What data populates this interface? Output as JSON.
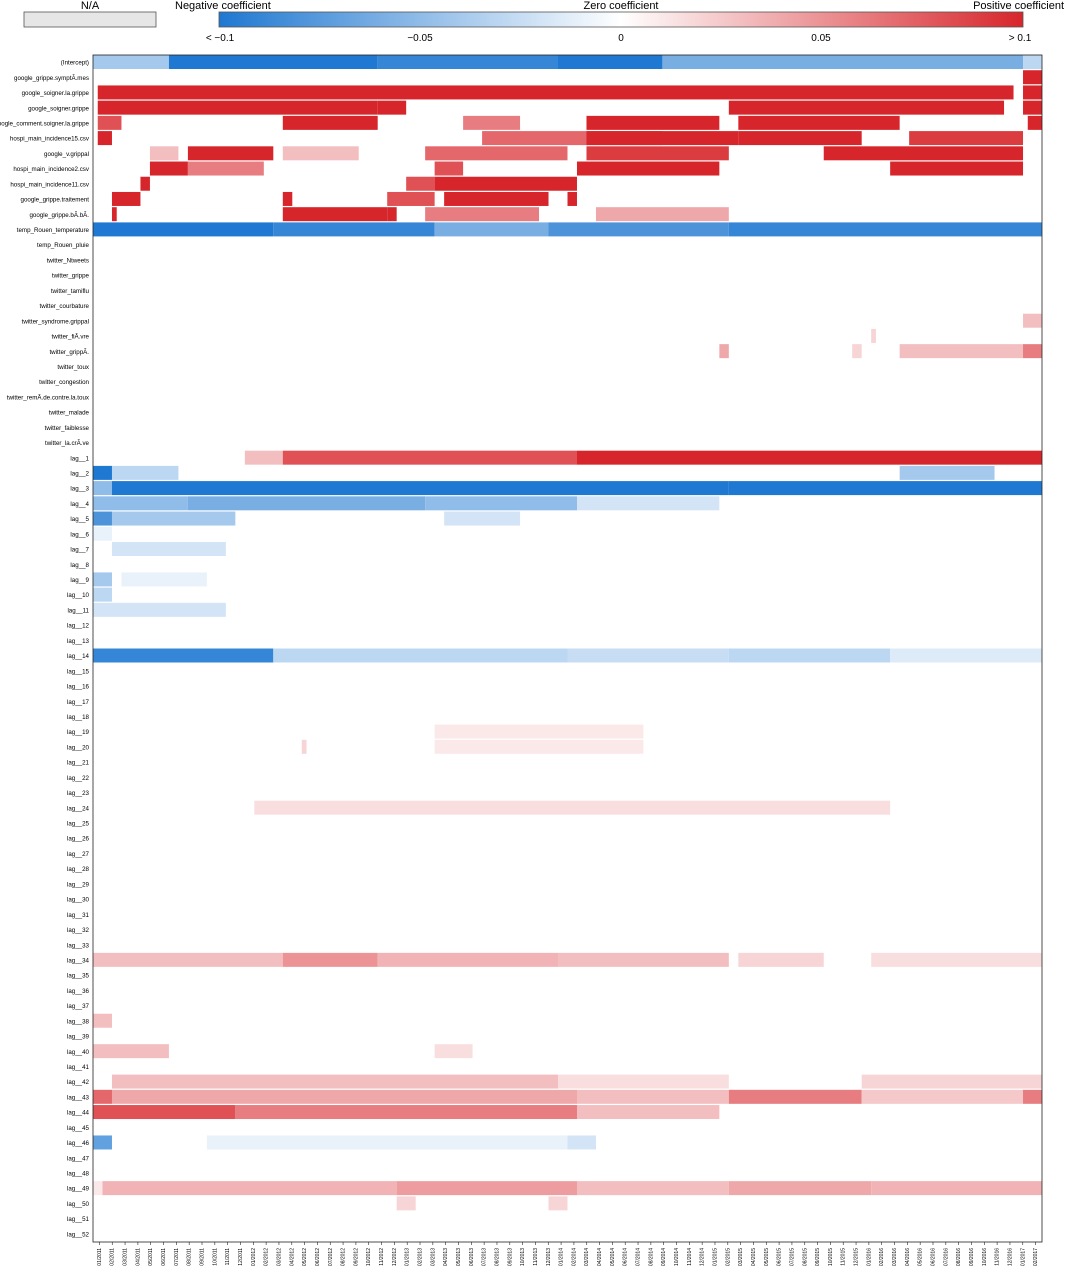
{
  "chart_data": {
    "type": "heatmap",
    "legend": {
      "na_label": "N/A",
      "negative_label": "Negative coefficient",
      "zero_label": "Zero coefficient",
      "positive_label": "Positive coefficient",
      "ticks": [
        "< −0.1",
        "−0.05",
        "0",
        "0.05",
        "> 0.1"
      ],
      "range": [
        -0.1,
        0.1
      ],
      "colors": {
        "negative": "#1f78d1",
        "zero": "#ffffff",
        "positive": "#d7262b",
        "na": "#e6e6e6"
      }
    },
    "x_labels": [
      "01/2011",
      "02/2011",
      "03/2011",
      "04/2011",
      "05/2011",
      "06/2011",
      "07/2011",
      "08/2011",
      "09/2011",
      "10/2011",
      "11/2011",
      "12/2011",
      "01/2012",
      "02/2012",
      "03/2012",
      "04/2012",
      "05/2012",
      "06/2012",
      "07/2012",
      "08/2012",
      "09/2012",
      "10/2012",
      "11/2012",
      "12/2012",
      "01/2013",
      "02/2013",
      "03/2013",
      "04/2013",
      "05/2013",
      "06/2013",
      "07/2013",
      "08/2013",
      "09/2013",
      "10/2013",
      "11/2013",
      "12/2013",
      "01/2014",
      "02/2014",
      "03/2014",
      "04/2014",
      "05/2014",
      "06/2014",
      "07/2014",
      "08/2014",
      "09/2014",
      "10/2014",
      "11/2014",
      "12/2014",
      "01/2015",
      "02/2015",
      "03/2015",
      "04/2015",
      "05/2015",
      "06/2015",
      "07/2015",
      "08/2015",
      "09/2015",
      "10/2015",
      "11/2015",
      "12/2015",
      "01/2016",
      "02/2016",
      "03/2016",
      "04/2016",
      "05/2016",
      "06/2016",
      "07/2016",
      "08/2016",
      "09/2016",
      "10/2016",
      "11/2016",
      "12/2016",
      "01/2017",
      "02/2017"
    ],
    "rows": [
      {
        "name": "(Intercept)",
        "segments": [
          [
            0,
            0.08,
            -0.04
          ],
          [
            0.08,
            0.3,
            -0.1
          ],
          [
            0.3,
            0.49,
            -0.09
          ],
          [
            0.49,
            0.6,
            -0.1
          ],
          [
            0.6,
            0.98,
            -0.06
          ],
          [
            0.98,
            1,
            -0.03
          ]
        ]
      },
      {
        "name": "google_grippe.symptÃ.mes",
        "segments": [
          [
            0.98,
            1,
            0.1
          ]
        ]
      },
      {
        "name": "google_soigner.la.grippe",
        "segments": [
          [
            0.005,
            0.97,
            0.1
          ],
          [
            0.98,
            1,
            0.1
          ]
        ]
      },
      {
        "name": "google_soigner.grippe",
        "segments": [
          [
            0.005,
            0.3,
            0.1
          ],
          [
            0.3,
            0.33,
            0.1
          ],
          [
            0.67,
            0.96,
            0.1
          ],
          [
            0.98,
            1,
            0.1
          ]
        ]
      },
      {
        "name": "google_comment.soigner.la.grippe",
        "segments": [
          [
            0.005,
            0.03,
            0.08
          ],
          [
            0.2,
            0.3,
            0.1
          ],
          [
            0.39,
            0.45,
            0.06
          ],
          [
            0.52,
            0.66,
            0.1
          ],
          [
            0.68,
            0.85,
            0.1
          ],
          [
            0.985,
            1,
            0.1
          ]
        ]
      },
      {
        "name": "hospi_main_incidence15.csv",
        "segments": [
          [
            0.005,
            0.02,
            0.1
          ],
          [
            0.41,
            0.6,
            0.07
          ],
          [
            0.52,
            0.68,
            0.1
          ],
          [
            0.68,
            0.81,
            0.1
          ],
          [
            0.86,
            0.98,
            0.09
          ]
        ]
      },
      {
        "name": "google_v.grippal",
        "segments": [
          [
            0.06,
            0.09,
            0.03
          ],
          [
            0.1,
            0.19,
            0.1
          ],
          [
            0.2,
            0.28,
            0.03
          ],
          [
            0.35,
            0.5,
            0.07
          ],
          [
            0.52,
            0.67,
            0.09
          ],
          [
            0.77,
            0.98,
            0.1
          ]
        ]
      },
      {
        "name": "hospi_main_incidence2.csv",
        "segments": [
          [
            0.06,
            0.1,
            0.1
          ],
          [
            0.1,
            0.18,
            0.06
          ],
          [
            0.36,
            0.39,
            0.08
          ],
          [
            0.51,
            0.66,
            0.1
          ],
          [
            0.84,
            0.98,
            0.1
          ]
        ]
      },
      {
        "name": "hospi_main_incidence11.csv",
        "segments": [
          [
            0.05,
            0.06,
            0.1
          ],
          [
            0.33,
            0.36,
            0.08
          ],
          [
            0.36,
            0.51,
            0.1
          ]
        ]
      },
      {
        "name": "google_grippe.traitement",
        "segments": [
          [
            0.02,
            0.05,
            0.1
          ],
          [
            0.2,
            0.21,
            0.1
          ],
          [
            0.31,
            0.36,
            0.08
          ],
          [
            0.37,
            0.48,
            0.1
          ],
          [
            0.5,
            0.51,
            0.1
          ]
        ]
      },
      {
        "name": "google_grippe.bÃ.bÃ.",
        "segments": [
          [
            0.02,
            0.025,
            0.1
          ],
          [
            0.2,
            0.31,
            0.1
          ],
          [
            0.31,
            0.32,
            0.1
          ],
          [
            0.35,
            0.47,
            0.06
          ],
          [
            0.53,
            0.67,
            0.04
          ]
        ]
      },
      {
        "name": "temp_Rouen_temperature",
        "segments": [
          [
            0,
            0.19,
            -0.1
          ],
          [
            0.19,
            0.36,
            -0.09
          ],
          [
            0.36,
            0.48,
            -0.06
          ],
          [
            0.48,
            0.67,
            -0.08
          ],
          [
            0.67,
            1,
            -0.09
          ]
        ]
      },
      {
        "name": "temp_Rouen_pluie",
        "segments": []
      },
      {
        "name": "twitter_Ntweets",
        "segments": []
      },
      {
        "name": "twitter_grippe",
        "segments": []
      },
      {
        "name": "twitter_tamiflu",
        "segments": []
      },
      {
        "name": "twitter_courbature",
        "segments": []
      },
      {
        "name": "twitter_syndrome.grippal",
        "segments": [
          [
            0.98,
            1,
            0.03
          ]
        ]
      },
      {
        "name": "twitter_fiÃ.vre",
        "segments": [
          [
            0.82,
            0.825,
            0.02
          ]
        ]
      },
      {
        "name": "twitter_grippÃ.",
        "segments": [
          [
            0.66,
            0.67,
            0.04
          ],
          [
            0.8,
            0.81,
            0.02
          ],
          [
            0.85,
            0.98,
            0.03
          ],
          [
            0.98,
            1,
            0.06
          ]
        ]
      },
      {
        "name": "twitter_toux",
        "segments": []
      },
      {
        "name": "twitter_congestion",
        "segments": []
      },
      {
        "name": "twitter_remÃ.de.contre.la.toux",
        "segments": []
      },
      {
        "name": "twitter_malade",
        "segments": []
      },
      {
        "name": "twitter_faiblesse",
        "segments": []
      },
      {
        "name": "twitter_la.crÃ.ve",
        "segments": []
      },
      {
        "name": "lag__1",
        "segments": [
          [
            0.16,
            0.2,
            0.03
          ],
          [
            0.2,
            0.51,
            0.08
          ],
          [
            0.51,
            1,
            0.1
          ]
        ]
      },
      {
        "name": "lag__2",
        "segments": [
          [
            0,
            0.02,
            -0.1
          ],
          [
            0.02,
            0.09,
            -0.03
          ],
          [
            0.85,
            0.95,
            -0.04
          ]
        ]
      },
      {
        "name": "lag__3",
        "segments": [
          [
            0,
            0.02,
            -0.05
          ],
          [
            0.02,
            0.67,
            -0.1
          ],
          [
            0.67,
            1,
            -0.1
          ]
        ]
      },
      {
        "name": "lag__4",
        "segments": [
          [
            0,
            0.1,
            -0.05
          ],
          [
            0.1,
            0.35,
            -0.06
          ],
          [
            0.35,
            0.51,
            -0.05
          ],
          [
            0.51,
            0.66,
            -0.02
          ]
        ]
      },
      {
        "name": "lag__5",
        "segments": [
          [
            0,
            0.02,
            -0.08
          ],
          [
            0.02,
            0.15,
            -0.04
          ],
          [
            0.37,
            0.45,
            -0.02
          ]
        ]
      },
      {
        "name": "lag__6",
        "segments": [
          [
            0,
            0.02,
            -0.01
          ]
        ]
      },
      {
        "name": "lag__7",
        "segments": [
          [
            0.02,
            0.14,
            -0.02
          ]
        ]
      },
      {
        "name": "lag__8",
        "segments": []
      },
      {
        "name": "lag__9",
        "segments": [
          [
            0,
            0.02,
            -0.04
          ],
          [
            0.03,
            0.12,
            -0.01
          ]
        ]
      },
      {
        "name": "lag__10",
        "segments": [
          [
            0,
            0.02,
            -0.03
          ]
        ]
      },
      {
        "name": "lag__11",
        "segments": [
          [
            0,
            0.14,
            -0.02
          ]
        ]
      },
      {
        "name": "lag__12",
        "segments": []
      },
      {
        "name": "lag__13",
        "segments": []
      },
      {
        "name": "lag__14",
        "segments": [
          [
            0,
            0.19,
            -0.09
          ],
          [
            0.19,
            0.5,
            -0.03
          ],
          [
            0.5,
            0.67,
            -0.025
          ],
          [
            0.67,
            0.84,
            -0.03
          ],
          [
            0.84,
            1,
            -0.015
          ]
        ]
      },
      {
        "name": "lag__15",
        "segments": []
      },
      {
        "name": "lag__16",
        "segments": []
      },
      {
        "name": "lag__17",
        "segments": []
      },
      {
        "name": "lag__18",
        "segments": []
      },
      {
        "name": "lag__19",
        "segments": [
          [
            0.36,
            0.58,
            0.01
          ]
        ]
      },
      {
        "name": "lag__20",
        "segments": [
          [
            0.22,
            0.225,
            0.02
          ],
          [
            0.36,
            0.58,
            0.01
          ]
        ]
      },
      {
        "name": "lag__21",
        "segments": []
      },
      {
        "name": "lag__22",
        "segments": []
      },
      {
        "name": "lag__23",
        "segments": []
      },
      {
        "name": "lag__24",
        "segments": [
          [
            0.17,
            0.84,
            0.015
          ]
        ]
      },
      {
        "name": "lag__25",
        "segments": []
      },
      {
        "name": "lag__26",
        "segments": []
      },
      {
        "name": "lag__27",
        "segments": []
      },
      {
        "name": "lag__28",
        "segments": []
      },
      {
        "name": "lag__29",
        "segments": []
      },
      {
        "name": "lag__30",
        "segments": []
      },
      {
        "name": "lag__31",
        "segments": []
      },
      {
        "name": "lag__32",
        "segments": []
      },
      {
        "name": "lag__33",
        "segments": []
      },
      {
        "name": "lag__34",
        "segments": [
          [
            0,
            0.2,
            0.03
          ],
          [
            0.2,
            0.3,
            0.05
          ],
          [
            0.3,
            0.49,
            0.035
          ],
          [
            0.49,
            0.67,
            0.03
          ],
          [
            0.68,
            0.77,
            0.02
          ],
          [
            0.82,
            1,
            0.015
          ]
        ]
      },
      {
        "name": "lag__35",
        "segments": []
      },
      {
        "name": "lag__36",
        "segments": []
      },
      {
        "name": "lag__37",
        "segments": []
      },
      {
        "name": "lag__38",
        "segments": [
          [
            0,
            0.02,
            0.03
          ]
        ]
      },
      {
        "name": "lag__39",
        "segments": []
      },
      {
        "name": "lag__40",
        "segments": [
          [
            0,
            0.08,
            0.03
          ],
          [
            0.36,
            0.4,
            0.015
          ]
        ]
      },
      {
        "name": "lag__41",
        "segments": []
      },
      {
        "name": "lag__42",
        "segments": [
          [
            0.02,
            0.49,
            0.03
          ],
          [
            0.49,
            0.67,
            0.015
          ],
          [
            0.81,
            1,
            0.02
          ]
        ]
      },
      {
        "name": "lag__43",
        "segments": [
          [
            0,
            0.02,
            0.07
          ],
          [
            0.02,
            0.51,
            0.04
          ],
          [
            0.51,
            0.67,
            0.03
          ],
          [
            0.67,
            0.81,
            0.06
          ],
          [
            0.81,
            0.98,
            0.025
          ],
          [
            0.98,
            1,
            0.06
          ]
        ]
      },
      {
        "name": "lag__44",
        "segments": [
          [
            0,
            0.15,
            0.08
          ],
          [
            0.15,
            0.51,
            0.06
          ],
          [
            0.51,
            0.66,
            0.03
          ]
        ]
      },
      {
        "name": "lag__45",
        "segments": []
      },
      {
        "name": "lag__46",
        "segments": [
          [
            0,
            0.02,
            -0.07
          ],
          [
            0.12,
            0.5,
            -0.01
          ],
          [
            0.5,
            0.53,
            -0.02
          ]
        ]
      },
      {
        "name": "lag__47",
        "segments": []
      },
      {
        "name": "lag__48",
        "segments": []
      },
      {
        "name": "lag__49",
        "segments": [
          [
            0,
            0.01,
            0.01
          ],
          [
            0.01,
            0.32,
            0.035
          ],
          [
            0.32,
            0.51,
            0.045
          ],
          [
            0.51,
            0.67,
            0.03
          ],
          [
            0.67,
            0.82,
            0.04
          ],
          [
            0.82,
            1,
            0.035
          ]
        ]
      },
      {
        "name": "lag__50",
        "segments": [
          [
            0.32,
            0.34,
            0.02
          ],
          [
            0.48,
            0.5,
            0.02
          ]
        ]
      },
      {
        "name": "lag__51",
        "segments": []
      },
      {
        "name": "lag__52",
        "segments": []
      }
    ]
  }
}
